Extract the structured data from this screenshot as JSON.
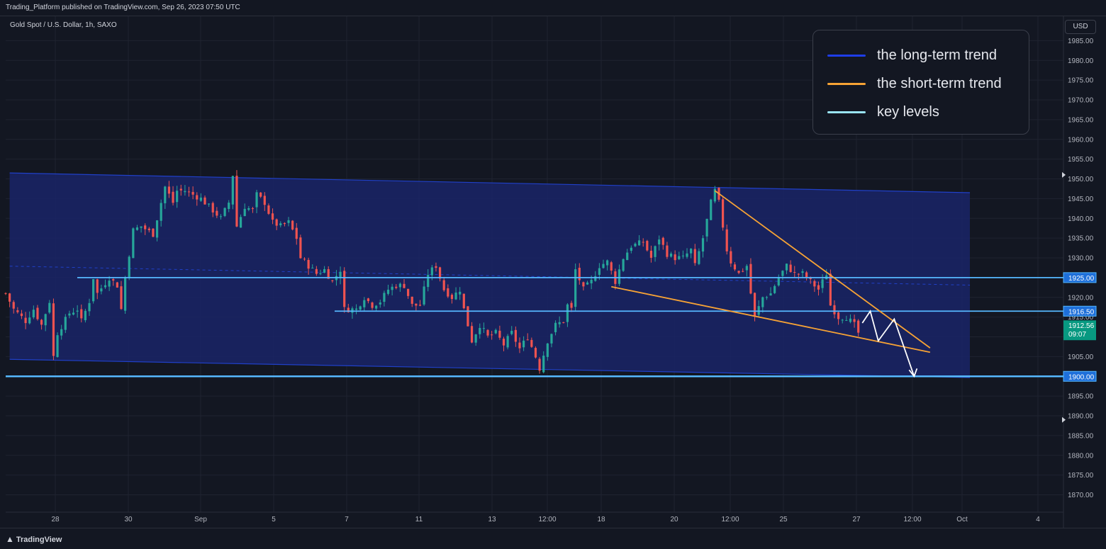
{
  "header": {
    "published": "Trading_Platform published on TradingView.com, Sep 26, 2023 07:50 UTC",
    "symbol": "Gold Spot / U.S. Dollar, 1h, SAXO",
    "currency_button": "USD"
  },
  "footer": {
    "brand": "TradingView"
  },
  "legend": [
    {
      "label": "the long-term trend",
      "color": "#1e3de8"
    },
    {
      "label": "the short-term trend",
      "color": "#f7a335"
    },
    {
      "label": "key levels",
      "color": "#9ae4f5"
    }
  ],
  "colors": {
    "background": "#131722",
    "grid": "#1f2330",
    "up": "#26a69a",
    "down": "#ef5350",
    "channel_fill": "#1a2467",
    "channel_edge": "#2040c8",
    "key_level": "#56b8ff",
    "short_trend": "#f7a335",
    "projection": "#ffffff",
    "price_tag": "#089981"
  },
  "chart_data": {
    "type": "candlestick",
    "title": "Gold Spot / U.S. Dollar, 1h, SAXO",
    "xlabel": "",
    "ylabel": "USD",
    "ylim": [
      1866,
      1989
    ],
    "y_ticks": [
      1870,
      1875,
      1880,
      1885,
      1890,
      1895,
      1900,
      1905,
      1910,
      1915,
      1920,
      1925,
      1930,
      1935,
      1940,
      1945,
      1950,
      1955,
      1960,
      1965,
      1970,
      1975,
      1980,
      1985
    ],
    "x_ticks": [
      "28",
      "30",
      "Sep",
      "5",
      "7",
      "11",
      "13",
      "12:00",
      "18",
      "20",
      "12:00",
      "25",
      "27",
      "12:00",
      "Oct",
      "4"
    ],
    "key_levels": [
      {
        "label": "1925.00",
        "value": 1925.0
      },
      {
        "label": "1916.50",
        "value": 1916.5
      },
      {
        "label": "1900.00",
        "value": 1900.0
      }
    ],
    "last_price": {
      "value": "1912.56",
      "countdown": "09:07"
    },
    "price_path": [
      [
        0,
        1921
      ],
      [
        2,
        1917
      ],
      [
        5,
        1914
      ],
      [
        7,
        1917
      ],
      [
        9,
        1913
      ],
      [
        11,
        1919
      ],
      [
        12,
        1905
      ],
      [
        13,
        1911
      ],
      [
        16,
        1916
      ],
      [
        18,
        1917
      ],
      [
        19,
        1914
      ],
      [
        21,
        1919
      ],
      [
        22,
        1925
      ],
      [
        23,
        1921
      ],
      [
        26,
        1925
      ],
      [
        28,
        1923
      ],
      [
        29,
        1917
      ],
      [
        30,
        1925
      ],
      [
        32,
        1937
      ],
      [
        34,
        1938
      ],
      [
        37,
        1936
      ],
      [
        38,
        1940
      ],
      [
        40,
        1948
      ],
      [
        42,
        1944
      ],
      [
        43,
        1947
      ],
      [
        45,
        1947
      ],
      [
        47,
        1946
      ],
      [
        49,
        1945
      ],
      [
        50,
        1944
      ],
      [
        52,
        1942
      ],
      [
        54,
        1940
      ],
      [
        56,
        1944
      ],
      [
        57,
        1951
      ],
      [
        58,
        1938
      ],
      [
        60,
        1943
      ],
      [
        62,
        1942
      ],
      [
        63,
        1946
      ],
      [
        65,
        1944
      ],
      [
        67,
        1939
      ],
      [
        69,
        1938
      ],
      [
        71,
        1939
      ],
      [
        73,
        1935
      ],
      [
        74,
        1930
      ],
      [
        76,
        1928
      ],
      [
        78,
        1926
      ],
      [
        80,
        1927
      ],
      [
        82,
        1924
      ],
      [
        84,
        1927
      ],
      [
        85,
        1917
      ],
      [
        86,
        1917
      ],
      [
        88,
        1917
      ],
      [
        90,
        1920
      ],
      [
        92,
        1918
      ],
      [
        94,
        1919
      ],
      [
        96,
        1922
      ],
      [
        98,
        1923
      ],
      [
        100,
        1923
      ],
      [
        102,
        1918
      ],
      [
        104,
        1918
      ],
      [
        106,
        1926
      ],
      [
        108,
        1928
      ],
      [
        110,
        1922
      ],
      [
        112,
        1920
      ],
      [
        114,
        1922
      ],
      [
        115,
        1917
      ],
      [
        117,
        1909
      ],
      [
        119,
        1913
      ],
      [
        121,
        1910
      ],
      [
        123,
        1911
      ],
      [
        125,
        1908
      ],
      [
        127,
        1911
      ],
      [
        129,
        1907
      ],
      [
        131,
        1910
      ],
      [
        133,
        1905
      ],
      [
        134,
        1902
      ],
      [
        136,
        1909
      ],
      [
        138,
        1913
      ],
      [
        140,
        1914
      ],
      [
        141,
        1918
      ],
      [
        142,
        1917
      ],
      [
        143,
        1927
      ],
      [
        145,
        1922
      ],
      [
        147,
        1924
      ],
      [
        149,
        1928
      ],
      [
        151,
        1929
      ],
      [
        153,
        1924
      ],
      [
        155,
        1930
      ],
      [
        157,
        1933
      ],
      [
        160,
        1934
      ],
      [
        162,
        1930
      ],
      [
        164,
        1935
      ],
      [
        166,
        1931
      ],
      [
        168,
        1930
      ],
      [
        170,
        1930
      ],
      [
        172,
        1932
      ],
      [
        173,
        1928
      ],
      [
        175,
        1935
      ],
      [
        177,
        1944
      ],
      [
        178,
        1947
      ],
      [
        179,
        1944
      ],
      [
        181,
        1932
      ],
      [
        182,
        1929
      ],
      [
        184,
        1926
      ],
      [
        186,
        1928
      ],
      [
        187,
        1921
      ],
      [
        188,
        1915
      ],
      [
        190,
        1920
      ],
      [
        192,
        1921
      ],
      [
        194,
        1925
      ],
      [
        196,
        1928
      ],
      [
        198,
        1926
      ],
      [
        200,
        1926
      ],
      [
        202,
        1924
      ],
      [
        204,
        1922
      ],
      [
        205,
        1924
      ],
      [
        206,
        1926
      ],
      [
        207,
        1918
      ],
      [
        209,
        1915
      ],
      [
        211,
        1915
      ],
      [
        213,
        1913
      ],
      [
        214,
        1911
      ]
    ],
    "channel": {
      "upper": [
        [
          1,
          1951.5
        ],
        [
          242,
          1946.5
        ]
      ],
      "lower": [
        [
          1,
          1904.3
        ],
        [
          242,
          1899.7
        ]
      ],
      "midline": [
        [
          1,
          1927.9
        ],
        [
          242,
          1923.1
        ]
      ]
    },
    "short_trend": {
      "upper": [
        [
          178,
          1947
        ],
        [
          232,
          1907.2
        ]
      ],
      "lower": [
        [
          152,
          1922.7
        ],
        [
          232,
          1906.1
        ]
      ]
    },
    "projection": [
      [
        215,
        1913.5
      ],
      [
        217,
        1916.5
      ],
      [
        219,
        1909.0
      ],
      [
        223,
        1914.5
      ],
      [
        228,
        1900.0
      ]
    ]
  }
}
